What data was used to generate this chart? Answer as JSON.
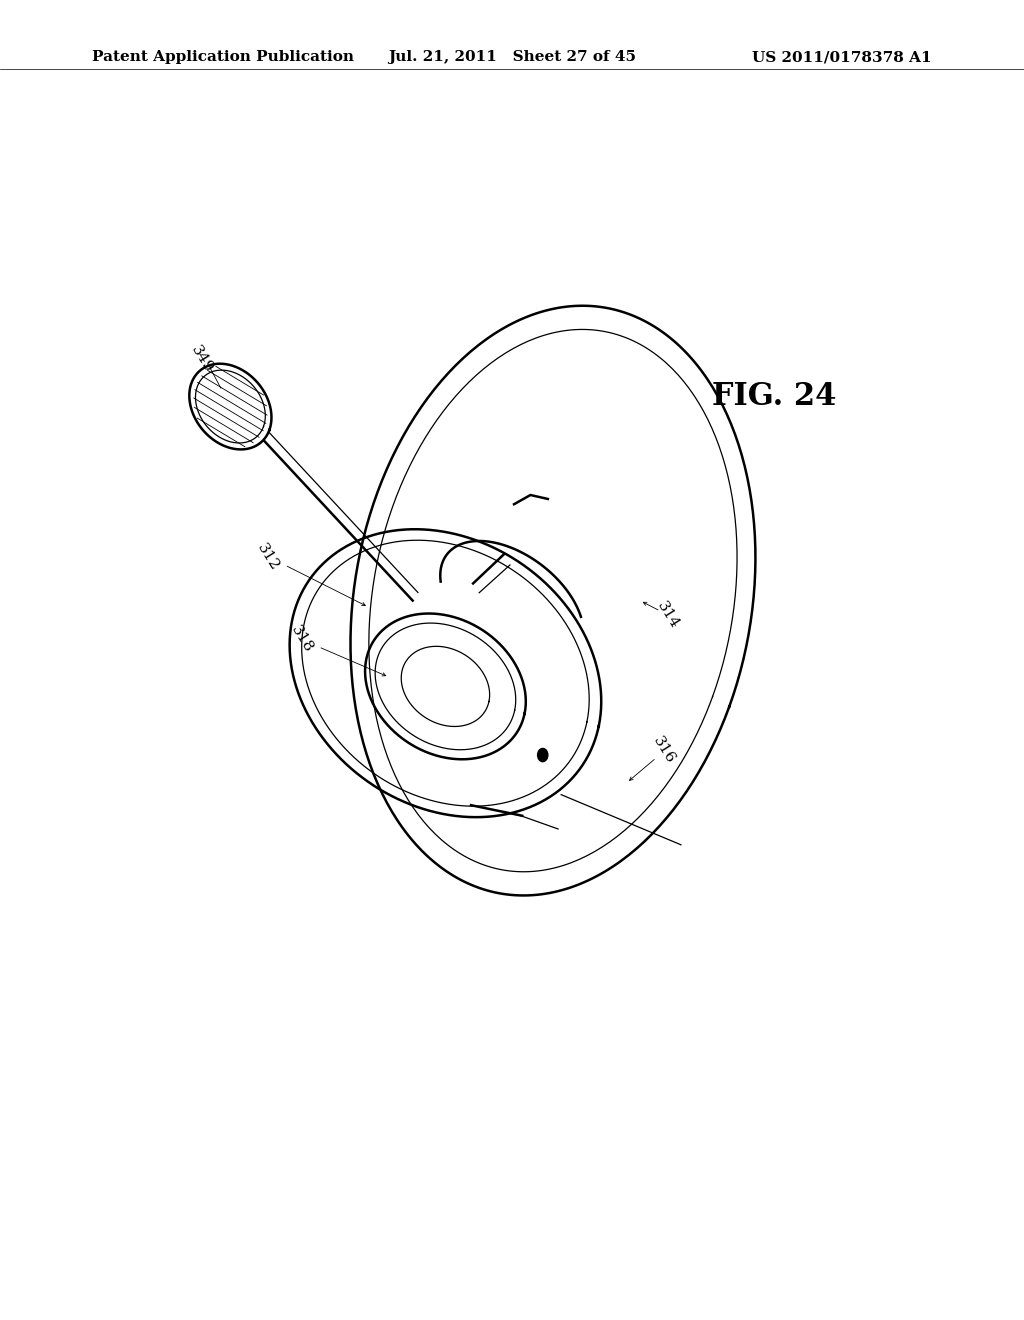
{
  "background_color": "#ffffff",
  "header_left": "Patent Application Publication",
  "header_center": "Jul. 21, 2011   Sheet 27 of 45",
  "header_right": "US 2011/0178378 A1",
  "fig_label": "FIG. 24",
  "line_color": "#000000",
  "text_color": "#000000",
  "header_fontsize": 11,
  "fig_label_fontsize": 22,
  "label_fontsize": 11
}
